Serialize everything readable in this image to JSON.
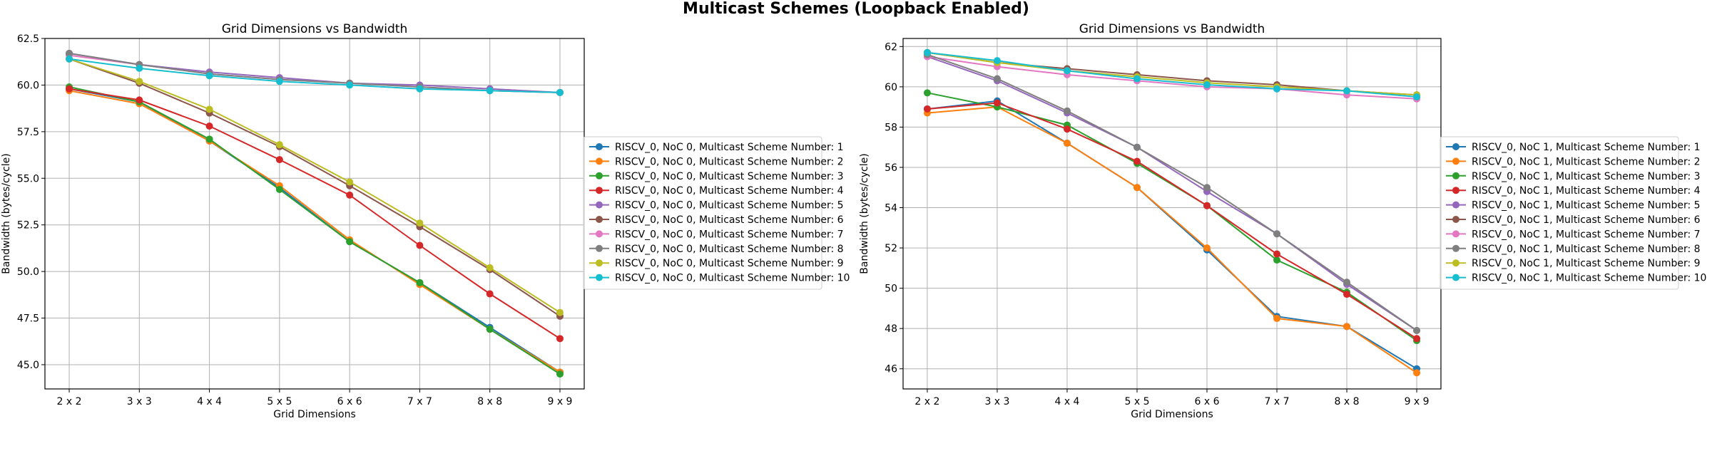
{
  "figure": {
    "title": "Multicast Schemes (Loopback Enabled)"
  },
  "chart_data": [
    {
      "type": "line",
      "title": "Grid Dimensions vs Bandwidth",
      "xlabel": "Grid Dimensions",
      "ylabel": "Bandwidth (bytes/cycle)",
      "categories": [
        "2 x 2",
        "3 x 3",
        "4 x 4",
        "5 x 5",
        "6 x 6",
        "7 x 7",
        "8 x 8",
        "9 x 9"
      ],
      "ylim": [
        43.7,
        62.5
      ],
      "yticks": [
        45.0,
        47.5,
        50.0,
        52.5,
        55.0,
        57.5,
        60.0,
        62.5
      ],
      "ytick_labels": [
        "45.0",
        "47.5",
        "50.0",
        "52.5",
        "55.0",
        "57.5",
        "60.0",
        "62.5"
      ],
      "grid": true,
      "legend_placement": "outside-right",
      "series": [
        {
          "name": "RISCV_0, NoC 0, Multicast Scheme Number: 1",
          "color": "#1f77b4",
          "values": [
            59.8,
            59.1,
            57.0,
            54.5,
            51.6,
            49.4,
            47.0,
            44.6
          ]
        },
        {
          "name": "RISCV_0, NoC 0, Multicast Scheme Number: 2",
          "color": "#ff7f0e",
          "values": [
            59.7,
            59.0,
            57.0,
            54.6,
            51.7,
            49.3,
            46.9,
            44.6
          ]
        },
        {
          "name": "RISCV_0, NoC 0, Multicast Scheme Number: 3",
          "color": "#2ca02c",
          "values": [
            59.9,
            59.1,
            57.1,
            54.4,
            51.6,
            49.4,
            46.9,
            44.5
          ]
        },
        {
          "name": "RISCV_0, NoC 0, Multicast Scheme Number: 4",
          "color": "#d62728",
          "values": [
            59.8,
            59.2,
            57.8,
            56.0,
            54.1,
            51.4,
            48.8,
            46.4
          ]
        },
        {
          "name": "RISCV_0, NoC 0, Multicast Scheme Number: 5",
          "color": "#9467bd",
          "values": [
            61.7,
            61.1,
            60.7,
            60.4,
            60.1,
            60.0,
            59.8,
            59.6
          ]
        },
        {
          "name": "RISCV_0, NoC 0, Multicast Scheme Number: 6",
          "color": "#8c564b",
          "values": [
            61.4,
            60.1,
            58.5,
            56.7,
            54.6,
            52.4,
            50.1,
            47.6
          ]
        },
        {
          "name": "RISCV_0, NoC 0, Multicast Scheme Number: 7",
          "color": "#e377c2",
          "values": [
            61.6,
            61.1,
            60.6,
            60.3,
            60.1,
            59.9,
            59.7,
            59.6
          ]
        },
        {
          "name": "RISCV_0, NoC 0, Multicast Scheme Number: 8",
          "color": "#7f7f7f",
          "values": [
            61.7,
            61.1,
            60.6,
            60.3,
            60.1,
            59.9,
            59.7,
            59.6
          ]
        },
        {
          "name": "RISCV_0, NoC 0, Multicast Scheme Number: 9",
          "color": "#bcbd22",
          "values": [
            61.4,
            60.2,
            58.7,
            56.8,
            54.8,
            52.6,
            50.2,
            47.8
          ]
        },
        {
          "name": "RISCV_0, NoC 0, Multicast Scheme Number: 10",
          "color": "#17becf",
          "values": [
            61.4,
            60.9,
            60.5,
            60.2,
            60.0,
            59.8,
            59.7,
            59.6
          ]
        }
      ]
    },
    {
      "type": "line",
      "title": "Grid Dimensions vs Bandwidth",
      "xlabel": "Grid Dimensions",
      "ylabel": "Bandwidth (bytes/cycle)",
      "categories": [
        "2 x 2",
        "3 x 3",
        "4 x 4",
        "5 x 5",
        "6 x 6",
        "7 x 7",
        "8 x 8",
        "9 x 9"
      ],
      "ylim": [
        45.0,
        62.4
      ],
      "yticks": [
        46,
        48,
        50,
        52,
        54,
        56,
        58,
        60,
        62
      ],
      "ytick_labels": [
        "46",
        "48",
        "50",
        "52",
        "54",
        "56",
        "58",
        "60",
        "62"
      ],
      "grid": true,
      "legend_placement": "outside-right",
      "series": [
        {
          "name": "RISCV_0, NoC 1, Multicast Scheme Number: 1",
          "color": "#1f77b4",
          "values": [
            58.9,
            59.3,
            57.2,
            55.0,
            51.9,
            48.6,
            48.1,
            46.0
          ]
        },
        {
          "name": "RISCV_0, NoC 1, Multicast Scheme Number: 2",
          "color": "#ff7f0e",
          "values": [
            58.7,
            59.0,
            57.2,
            55.0,
            52.0,
            48.5,
            48.1,
            45.8
          ]
        },
        {
          "name": "RISCV_0, NoC 1, Multicast Scheme Number: 3",
          "color": "#2ca02c",
          "values": [
            59.7,
            59.0,
            58.1,
            56.2,
            54.1,
            51.4,
            49.8,
            47.4
          ]
        },
        {
          "name": "RISCV_0, NoC 1, Multicast Scheme Number: 4",
          "color": "#d62728",
          "values": [
            58.9,
            59.2,
            57.9,
            56.3,
            54.1,
            51.7,
            49.7,
            47.5
          ]
        },
        {
          "name": "RISCV_0, NoC 1, Multicast Scheme Number: 5",
          "color": "#9467bd",
          "values": [
            61.5,
            60.3,
            58.7,
            57.0,
            54.8,
            52.7,
            50.2,
            47.9
          ]
        },
        {
          "name": "RISCV_0, NoC 1, Multicast Scheme Number: 6",
          "color": "#8c564b",
          "values": [
            61.7,
            61.2,
            60.9,
            60.6,
            60.3,
            60.1,
            59.8,
            59.6
          ]
        },
        {
          "name": "RISCV_0, NoC 1, Multicast Scheme Number: 7",
          "color": "#e377c2",
          "values": [
            61.5,
            61.0,
            60.6,
            60.3,
            60.0,
            59.9,
            59.6,
            59.4
          ]
        },
        {
          "name": "RISCV_0, NoC 1, Multicast Scheme Number: 8",
          "color": "#7f7f7f",
          "values": [
            61.6,
            60.4,
            58.8,
            57.0,
            55.0,
            52.7,
            50.3,
            47.9
          ]
        },
        {
          "name": "RISCV_0, NoC 1, Multicast Scheme Number: 9",
          "color": "#bcbd22",
          "values": [
            61.7,
            61.2,
            60.8,
            60.5,
            60.2,
            60.0,
            59.8,
            59.6
          ]
        },
        {
          "name": "RISCV_0, NoC 1, Multicast Scheme Number: 10",
          "color": "#17becf",
          "values": [
            61.7,
            61.3,
            60.8,
            60.4,
            60.1,
            59.9,
            59.8,
            59.5
          ]
        }
      ]
    }
  ]
}
